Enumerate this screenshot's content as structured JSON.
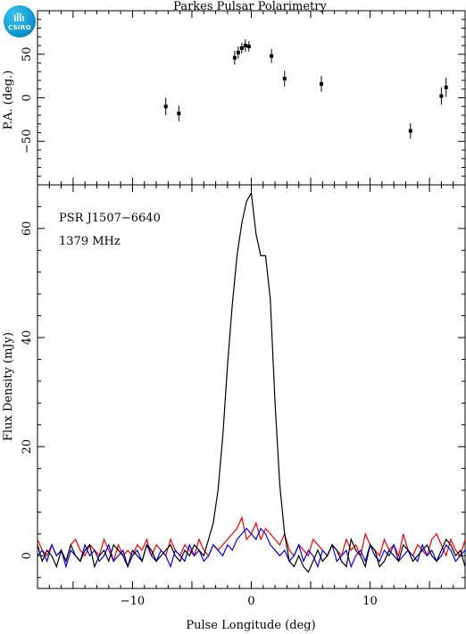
{
  "chart_data": {
    "title": "Parkes Pulsar Polarimetry",
    "xlabel": "Pulse Longitude (deg)",
    "xlim": [
      -18,
      18
    ],
    "xticks": [
      -10,
      0,
      10
    ],
    "pa_panel": {
      "type": "scatter",
      "ylabel": "P.A. (deg.)",
      "ylim": [
        -100,
        100
      ],
      "yticks": [
        -50,
        0,
        50
      ],
      "points": [
        {
          "x": -7.2,
          "y": -10,
          "err": 10
        },
        {
          "x": -6.1,
          "y": -18,
          "err": 9
        },
        {
          "x": -1.4,
          "y": 46,
          "err": 8
        },
        {
          "x": -1.1,
          "y": 52,
          "err": 7
        },
        {
          "x": -0.8,
          "y": 57,
          "err": 6
        },
        {
          "x": -0.5,
          "y": 60,
          "err": 7
        },
        {
          "x": -0.2,
          "y": 59,
          "err": 6
        },
        {
          "x": 1.7,
          "y": 48,
          "err": 8
        },
        {
          "x": 2.8,
          "y": 22,
          "err": 9
        },
        {
          "x": 5.9,
          "y": 16,
          "err": 9
        },
        {
          "x": 13.4,
          "y": -38,
          "err": 9
        },
        {
          "x": 16.0,
          "y": 2,
          "err": 10
        },
        {
          "x": 16.4,
          "y": 12,
          "err": 11
        }
      ]
    },
    "flux_panel": {
      "type": "line",
      "ylabel": "Flux Density (mJy)",
      "ylim": [
        -6,
        68
      ],
      "yticks": [
        0,
        20,
        40,
        60
      ],
      "annotations": [
        "PSR J1507−6640",
        "1379 MHz"
      ],
      "x": [
        -18.0,
        -17.6,
        -17.2,
        -16.8,
        -16.4,
        -16.0,
        -15.6,
        -15.2,
        -14.8,
        -14.4,
        -14.0,
        -13.6,
        -13.2,
        -12.8,
        -12.4,
        -12.0,
        -11.6,
        -11.2,
        -10.8,
        -10.4,
        -10.0,
        -9.6,
        -9.2,
        -8.8,
        -8.4,
        -8.0,
        -7.6,
        -7.2,
        -6.8,
        -6.4,
        -6.0,
        -5.6,
        -5.2,
        -4.8,
        -4.4,
        -4.0,
        -3.6,
        -3.2,
        -2.8,
        -2.4,
        -2.0,
        -1.6,
        -1.2,
        -0.8,
        -0.4,
        0.0,
        0.4,
        0.8,
        1.2,
        1.6,
        2.0,
        2.4,
        2.8,
        3.2,
        3.6,
        4.0,
        4.4,
        4.8,
        5.2,
        5.6,
        6.0,
        6.4,
        6.8,
        7.2,
        7.6,
        8.0,
        8.4,
        8.8,
        9.2,
        9.6,
        10.0,
        10.4,
        10.8,
        11.2,
        11.6,
        12.0,
        12.4,
        12.8,
        13.2,
        13.6,
        14.0,
        14.4,
        14.8,
        15.2,
        15.6,
        16.0,
        16.4,
        16.8,
        17.2,
        17.6,
        18.0
      ],
      "series": [
        {
          "name": "",
          "color": "#000000",
          "values": [
            2,
            -1,
            1,
            0,
            -2,
            1,
            -1,
            2,
            0,
            -1,
            1,
            2,
            -2,
            0,
            1,
            -1,
            2,
            1,
            0,
            -2,
            1,
            0,
            -1,
            2,
            1,
            -1,
            0,
            1,
            2,
            0,
            -1,
            1,
            0,
            2,
            1,
            0,
            3,
            6,
            12,
            22,
            35,
            46,
            55,
            61,
            65,
            66.5,
            59,
            55,
            55,
            47,
            28,
            13,
            4,
            -1,
            -2,
            0,
            -2,
            -3,
            -1,
            1,
            -1,
            0,
            2,
            1,
            -1,
            -2,
            3,
            1,
            0,
            -2,
            2,
            1,
            -2,
            -1,
            1,
            0,
            -1,
            2,
            1,
            -1,
            0,
            1,
            2,
            0,
            -1,
            1,
            3,
            2,
            0,
            1,
            -2
          ]
        },
        {
          "name": "",
          "color": "#ee0000",
          "values": [
            3,
            1,
            0,
            2,
            0,
            1,
            -1,
            2,
            3,
            1,
            0,
            2,
            1,
            0,
            3,
            1,
            -1,
            2,
            0,
            1,
            0,
            2,
            1,
            3,
            0,
            2,
            1,
            0,
            3,
            1,
            0,
            2,
            1,
            0,
            3,
            1,
            0,
            2,
            1,
            2,
            3,
            4,
            5,
            7,
            3,
            4,
            6,
            3,
            5,
            4,
            3,
            2,
            4,
            1,
            0,
            2,
            1,
            0,
            3,
            2,
            1,
            0,
            2,
            1,
            0,
            3,
            1,
            2,
            0,
            4,
            2,
            1,
            0,
            3,
            1,
            2,
            0,
            4,
            1,
            0,
            2,
            1,
            0,
            3,
            4,
            2,
            0,
            3,
            1,
            0,
            3
          ]
        },
        {
          "name": "",
          "color": "#0000ee",
          "values": [
            0,
            1,
            -1,
            2,
            0,
            1,
            -2,
            1,
            0,
            -1,
            2,
            0,
            1,
            -1,
            0,
            2,
            -1,
            0,
            1,
            -2,
            0,
            1,
            -1,
            2,
            0,
            -1,
            1,
            0,
            -2,
            1,
            0,
            -1,
            2,
            0,
            1,
            -1,
            0,
            2,
            1,
            0,
            2,
            1,
            3,
            4,
            5,
            4,
            3,
            5,
            4,
            2,
            1,
            0,
            1,
            -1,
            0,
            2,
            -1,
            1,
            0,
            -2,
            1,
            0,
            2,
            -1,
            0,
            1,
            -2,
            0,
            1,
            -1,
            2,
            0,
            -1,
            1,
            0,
            2,
            -1,
            0,
            1,
            0,
            -1,
            2,
            0,
            1,
            -1,
            0,
            2,
            1,
            -1,
            0,
            1
          ]
        }
      ]
    }
  },
  "logo": {
    "text": "CSIRO",
    "color": "#0a8fc8"
  }
}
